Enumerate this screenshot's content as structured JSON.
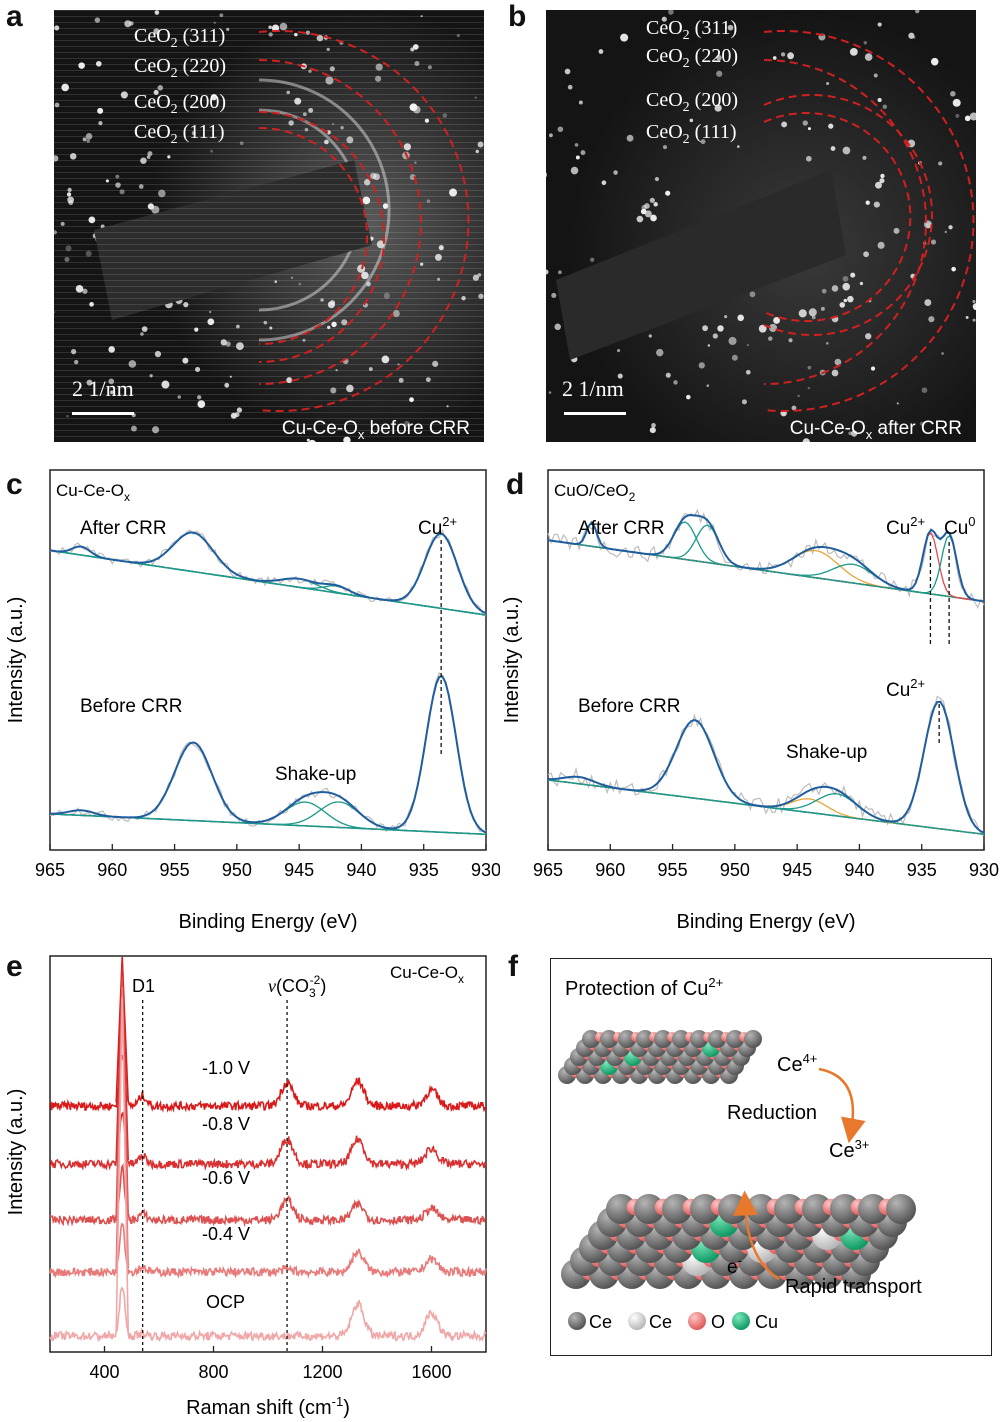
{
  "panel_letters": {
    "a": "a",
    "b": "b",
    "c": "c",
    "d": "d",
    "e": "e",
    "f": "f"
  },
  "panel_a": {
    "rings": [
      {
        "main": "CeO",
        "sub": "2",
        "hkl": " (311)"
      },
      {
        "main": "CeO",
        "sub": "2",
        "hkl": " (220)"
      },
      {
        "main": "CeO",
        "sub": "2",
        "hkl": " (200)"
      },
      {
        "main": "CeO",
        "sub": "2",
        "hkl": " (111)"
      }
    ],
    "scale_bar": "2 1/nm",
    "caption": {
      "pre": "Cu-Ce-O",
      "sub": "x",
      "post": " before CRR"
    }
  },
  "panel_b": {
    "rings": [
      {
        "main": "CeO",
        "sub": "2",
        "hkl": " (311)"
      },
      {
        "main": "CeO",
        "sub": "2",
        "hkl": " (220)"
      },
      {
        "main": "CeO",
        "sub": "2",
        "hkl": " (200)"
      },
      {
        "main": "CeO",
        "sub": "2",
        "hkl": " (111)"
      }
    ],
    "scale_bar": "2 1/nm",
    "caption": {
      "pre": "Cu-Ce-O",
      "sub": "x",
      "post": " after CRR"
    }
  },
  "chart_data": [
    {
      "panel": "c",
      "type": "line",
      "title": {
        "pre": "Cu-Ce-O",
        "sub": "x"
      },
      "xlabel": "Binding Energy (eV)",
      "ylabel": "Intensity (a.u.)",
      "xlim": [
        965,
        930
      ],
      "xticks": [
        "965",
        "960",
        "955",
        "950",
        "945",
        "940",
        "935",
        "930"
      ],
      "curve_labels": {
        "after": "After CRR",
        "before": "Before CRR",
        "shakeup": "Shake-up"
      },
      "peak_labels": [
        {
          "ion": "Cu",
          "sup": "2+",
          "position_eV": 933.6
        }
      ],
      "series": [
        {
          "name": "After CRR",
          "background": [
            [
              965,
              0.68
            ],
            [
              930,
              0.3
            ]
          ],
          "peaks": [
            [
              962.5,
              0.05,
              0.7
            ],
            [
              953.5,
              0.23,
              1.6
            ],
            [
              945,
              0.05,
              1.4
            ],
            [
              942,
              0.04,
              1.0
            ],
            [
              933.6,
              0.44,
              1.3
            ]
          ]
        },
        {
          "name": "Before CRR",
          "background": [
            [
              965,
              0.13
            ],
            [
              930,
              0.01
            ]
          ],
          "peaks": [
            [
              962.5,
              0.03,
              1.0
            ],
            [
              953.5,
              0.46,
              1.5
            ],
            [
              944.5,
              0.14,
              1.6
            ],
            [
              941.8,
              0.15,
              1.6
            ],
            [
              933.6,
              0.92,
              1.2
            ]
          ]
        }
      ]
    },
    {
      "panel": "d",
      "type": "line",
      "title": {
        "pre": "CuO/CeO",
        "sub": "2"
      },
      "xlabel": "Binding Energy (eV)",
      "ylabel": "Intensity (a.u.)",
      "xlim": [
        965,
        930
      ],
      "xticks": [
        "965",
        "960",
        "955",
        "950",
        "945",
        "940",
        "935",
        "930"
      ],
      "curve_labels": {
        "after": "After CRR",
        "before": "Before CRR",
        "shakeup": "Shake-up"
      },
      "peak_labels": [
        {
          "ion": "Cu",
          "sup": "2+",
          "position_eV": 934.3
        },
        {
          "ion": "Cu",
          "sup": "0",
          "position_eV": 932.8
        },
        {
          "ion": "Cu",
          "sup": "2+",
          "position_eV": 933.6
        }
      ],
      "series": [
        {
          "name": "After CRR",
          "background": [
            [
              965,
              0.74
            ],
            [
              930,
              0.38
            ]
          ],
          "peaks": [
            [
              961.5,
              0.14,
              0.4
            ],
            [
              954,
              0.22,
              0.9
            ],
            [
              952.2,
              0.22,
              0.9
            ],
            [
              943.5,
              0.16,
              1.8
            ],
            [
              940.5,
              0.11,
              1.6
            ],
            [
              934.3,
              0.36,
              0.6
            ],
            [
              932.8,
              0.36,
              0.6
            ]
          ]
        },
        {
          "name": "Before CRR",
          "background": [
            [
              965,
              0.33
            ],
            [
              930,
              0.01
            ]
          ],
          "peaks": [
            [
              962.5,
              0.04,
              1.2
            ],
            [
              953.2,
              0.46,
              1.5
            ],
            [
              944,
              0.08,
              1.4
            ],
            [
              941.8,
              0.13,
              1.6
            ],
            [
              933.6,
              0.75,
              1.2
            ]
          ]
        }
      ]
    },
    {
      "panel": "e",
      "type": "line",
      "title": {
        "pre": "Cu-Ce-O",
        "sub": "x"
      },
      "xlabel": "Raman shift (cm",
      "xlabel_sup": "-1",
      "xlabel_end": ")",
      "ylabel": "Intensity (a.u.)",
      "xlim": [
        200,
        1800
      ],
      "xticks": [
        "400",
        "800",
        "1200",
        "1600"
      ],
      "annotations": {
        "d1": "D1",
        "nu": "ν",
        "co3_pre": "(CO",
        "co3_sub": "3",
        "co3_sup": "-2",
        "co3_post": ")"
      },
      "reference_lines_cm-1": [
        540,
        1070
      ],
      "series": [
        {
          "name": "-1.0 V",
          "color": "#d91a1a",
          "peaks": [
            [
              465,
              1.0
            ],
            [
              540,
              0.2
            ],
            [
              1070,
              0.45
            ],
            [
              1330,
              0.48
            ],
            [
              1600,
              0.3
            ]
          ]
        },
        {
          "name": "-0.8 V",
          "color": "#d83030",
          "peaks": [
            [
              465,
              1.0
            ],
            [
              540,
              0.15
            ],
            [
              1070,
              0.48
            ],
            [
              1330,
              0.48
            ],
            [
              1600,
              0.3
            ]
          ]
        },
        {
          "name": "-0.6 V",
          "color": "#dd5050",
          "peaks": [
            [
              465,
              1.0
            ],
            [
              540,
              0.12
            ],
            [
              1070,
              0.38
            ],
            [
              1330,
              0.3
            ],
            [
              1600,
              0.22
            ]
          ]
        },
        {
          "name": "-0.4 V",
          "color": "#e87a7a",
          "peaks": [
            [
              465,
              1.0
            ],
            [
              540,
              0.1
            ],
            [
              1070,
              0.05
            ],
            [
              1330,
              0.38
            ],
            [
              1600,
              0.25
            ]
          ]
        },
        {
          "name": "OCP",
          "color": "#f0a7a7",
          "peaks": [
            [
              465,
              1.0
            ],
            [
              540,
              0.05
            ],
            [
              1070,
              0.0
            ],
            [
              1330,
              0.62
            ],
            [
              1600,
              0.45
            ]
          ]
        }
      ]
    }
  ],
  "panel_f": {
    "title": {
      "pre": "Protection of Cu",
      "sup": "2+"
    },
    "ce4": {
      "pre": "Ce",
      "sup": "4+"
    },
    "reduction": "Reduction",
    "ce3": {
      "pre": "Ce",
      "sup": "3+"
    },
    "electron": {
      "pre": "e",
      "sup": "-"
    },
    "transport": "Rapid transport",
    "legend": [
      "Ce",
      "Ce",
      "O",
      "Cu"
    ],
    "colors": {
      "ce": "#6e6e6e",
      "ce3": "#d8d8d8",
      "o": "#f07b7b",
      "cu": "#1fb57e",
      "arrow": "#e8782b"
    }
  }
}
